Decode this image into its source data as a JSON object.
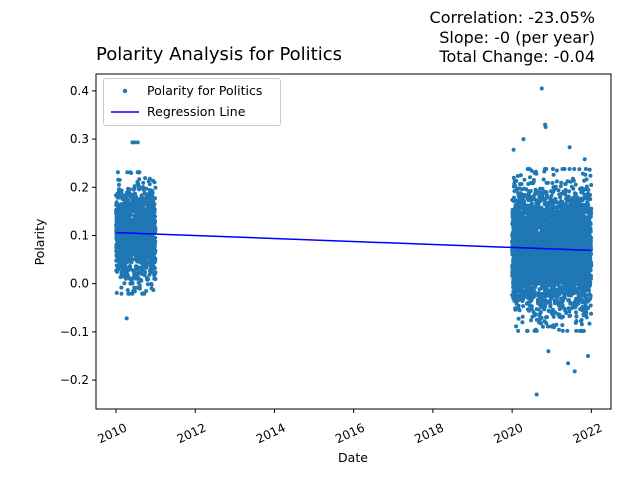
{
  "header": {
    "stats": [
      "Correlation: -23.05%",
      "Slope: -0 (per year)",
      "Total Change: -0.04"
    ]
  },
  "chart_data": {
    "type": "scatter",
    "title": "Polarity Analysis for Politics",
    "xlabel": "Date",
    "ylabel": "Polarity",
    "xlim": [
      "2009-07-01",
      "2022-07-01"
    ],
    "ylim": [
      -0.26,
      0.435
    ],
    "x_ticks": [
      "2010",
      "2012",
      "2014",
      "2016",
      "2018",
      "2020",
      "2022"
    ],
    "y_ticks": [
      "−0.2",
      "−0.1",
      "0.0",
      "0.1",
      "0.2",
      "0.3",
      "0.4"
    ],
    "x_tick_years": [
      2010,
      2012,
      2014,
      2016,
      2018,
      2020,
      2022
    ],
    "y_tick_values": [
      -0.2,
      -0.1,
      0.0,
      0.1,
      0.2,
      0.3,
      0.4
    ],
    "grid": false,
    "legend_position": "top-left",
    "series": [
      {
        "name": "Polarity for Politics",
        "color": "#1f77b4",
        "clusters": [
          {
            "x_from": "2010-01-01",
            "x_to": "2010-12-31",
            "y_mean": 0.105,
            "y_sd": 0.045,
            "n": 1600
          },
          {
            "x_from": "2020-01-01",
            "x_to": "2021-12-31",
            "y_mean": 0.07,
            "y_sd": 0.06,
            "n": 4000
          }
        ],
        "notable_points": [
          {
            "x": "2010-06-01",
            "y": 0.293
          },
          {
            "x": "2010-06-20",
            "y": 0.293
          },
          {
            "x": "2010-07-20",
            "y": 0.293
          },
          {
            "x": "2010-04-10",
            "y": -0.072
          },
          {
            "x": "2020-10-01",
            "y": 0.405
          },
          {
            "x": "2020-11-01",
            "y": 0.33
          },
          {
            "x": "2020-11-05",
            "y": 0.325
          },
          {
            "x": "2020-04-15",
            "y": 0.3
          },
          {
            "x": "2020-01-15",
            "y": 0.278
          },
          {
            "x": "2021-06-15",
            "y": 0.283
          },
          {
            "x": "2021-11-01",
            "y": 0.258
          },
          {
            "x": "2020-08-15",
            "y": -0.23
          },
          {
            "x": "2021-08-01",
            "y": -0.182
          },
          {
            "x": "2021-06-01",
            "y": -0.165
          },
          {
            "x": "2021-12-01",
            "y": -0.15
          },
          {
            "x": "2020-12-01",
            "y": -0.14
          }
        ]
      },
      {
        "name": "Regression Line",
        "color": "#0000ff",
        "x": [
          "2010-01-01",
          "2022-01-01"
        ],
        "y": [
          0.106,
          0.069
        ]
      }
    ]
  }
}
